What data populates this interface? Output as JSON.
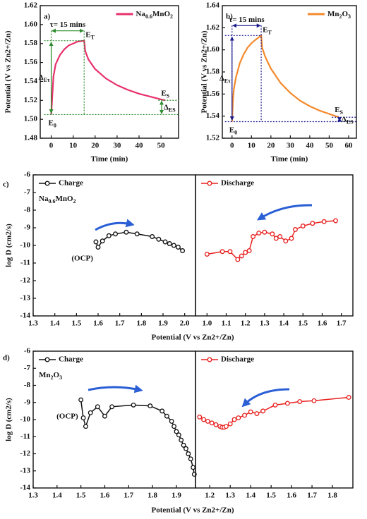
{
  "chart_data": [
    {
      "type": "line",
      "panel_label": "a)",
      "xlabel": "Time (min)",
      "ylabel": "Potential (V vs Zn2+/Zn)",
      "xlim": [
        -5,
        58
      ],
      "xticks": [
        0,
        10,
        20,
        30,
        40,
        50
      ],
      "ylim": [
        1.48,
        1.62
      ],
      "yticks": [
        1.48,
        {
          "value": 1.5,
          "label": "1.50"
        },
        1.52,
        1.54,
        1.56,
        1.58,
        {
          "value": 1.6,
          "label": "1.60"
        },
        1.62
      ],
      "legend": "upper right",
      "guide_color": "#2e8b2e",
      "annotations": [
        "τ= 15 mins",
        "ET",
        "ΔEτ",
        "ES",
        "ΔES",
        "E0"
      ],
      "series": [
        {
          "name": "Na0.6MnO2",
          "color": "#e8306b",
          "x": [
            0,
            1,
            2,
            4,
            6,
            8,
            10,
            12,
            15,
            15.5,
            17,
            20,
            25,
            30,
            35,
            40,
            45,
            50,
            52
          ],
          "values": [
            1.505,
            1.545,
            1.558,
            1.568,
            1.574,
            1.578,
            1.58,
            1.582,
            1.583,
            1.572,
            1.563,
            1.553,
            1.543,
            1.536,
            1.531,
            1.527,
            1.524,
            1.521,
            1.52
          ]
        }
      ]
    },
    {
      "type": "line",
      "panel_label": "b)",
      "xlabel": "Time (min)",
      "ylabel": "Potential (V vs Zn2+/Zn)",
      "xlim": [
        -5,
        64
      ],
      "xticks": [
        0,
        10,
        20,
        30,
        40,
        50,
        60
      ],
      "ylim": [
        1.52,
        1.64
      ],
      "yticks": [
        1.52,
        1.54,
        1.56,
        1.58,
        {
          "value": 1.6,
          "label": "1.60"
        },
        1.62,
        1.64
      ],
      "legend": "upper right",
      "guide_color": "#1a1a8c",
      "annotations": [
        "τ= 15 mins",
        "ET",
        "ΔEτ",
        "ES",
        "ΔES",
        "E0"
      ],
      "series": [
        {
          "name": "Mn2O3",
          "color": "#f4892c",
          "x": [
            0,
            0.5,
            1,
            2,
            4,
            6,
            8,
            10,
            12,
            15,
            15.5,
            17,
            20,
            25,
            30,
            35,
            40,
            45,
            50,
            55
          ],
          "values": [
            1.535,
            1.555,
            1.565,
            1.575,
            1.588,
            1.596,
            1.602,
            1.606,
            1.609,
            1.613,
            1.602,
            1.594,
            1.583,
            1.57,
            1.561,
            1.554,
            1.549,
            1.545,
            1.542,
            1.539
          ]
        }
      ]
    },
    {
      "type": "line",
      "markers": true,
      "panel_label": "c)",
      "xlabel": "Potential (V vs Zn2+/Zn)",
      "ylabel": "log D (cm2/s)",
      "xlim": [
        1.3,
        2.05
      ],
      "xticks": [
        1.3,
        1.4,
        1.5,
        1.6,
        1.7,
        1.8,
        1.9,
        {
          "value": 2,
          "label": "2.0"
        }
      ],
      "ylim": [
        -14,
        -6
      ],
      "yticks": [
        -14,
        -13,
        -12,
        -11,
        -10,
        -9,
        -8,
        -7,
        -6
      ],
      "legend": "upper left",
      "annotations": [
        "Na0.6MnO2",
        "(OCP)"
      ],
      "series": [
        {
          "name": "Charge",
          "color": "#111111",
          "x": [
            1.59,
            1.6,
            1.62,
            1.65,
            1.68,
            1.73,
            1.78,
            1.85,
            1.88,
            1.91,
            1.93,
            1.95,
            1.97,
            1.99
          ],
          "values": [
            -9.8,
            -10.1,
            -9.75,
            -9.45,
            -9.35,
            -9.25,
            -9.35,
            -9.5,
            -9.65,
            -9.8,
            -9.9,
            -10,
            -10.1,
            -10.3
          ]
        }
      ]
    },
    {
      "type": "line",
      "markers": true,
      "xlim": [
        0.94,
        1.76
      ],
      "xticks": [
        {
          "value": 1,
          "label": "1.0"
        },
        1.1,
        1.2,
        1.3,
        1.4,
        1.5,
        1.6,
        1.7
      ],
      "ylim": [
        -14,
        -6
      ],
      "legend": "upper left",
      "series": [
        {
          "name": "Discharge",
          "color": "#e8201e",
          "x": [
            1.0,
            1.08,
            1.12,
            1.16,
            1.18,
            1.2,
            1.22,
            1.24,
            1.27,
            1.3,
            1.34,
            1.36,
            1.38,
            1.41,
            1.44,
            1.46,
            1.5,
            1.55,
            1.61,
            1.67
          ],
          "values": [
            -10.5,
            -10.35,
            -10.35,
            -10.8,
            -10.6,
            -10.4,
            -10.3,
            -9.5,
            -9.3,
            -9.25,
            -9.35,
            -9.6,
            -9.5,
            -9.75,
            -9.6,
            -9.1,
            -8.9,
            -8.75,
            -8.65,
            -8.6
          ]
        }
      ]
    },
    {
      "type": "line",
      "markers": true,
      "panel_label": "d)",
      "xlabel": "Potential (V vs Zn2+/Zn)",
      "ylabel": "log D (cm2/s)",
      "xlim": [
        1.3,
        1.98
      ],
      "xticks": [
        1.3,
        1.4,
        1.5,
        1.6,
        1.7,
        1.8,
        1.9
      ],
      "ylim": [
        -14,
        -6
      ],
      "yticks": [
        -14,
        -13,
        -12,
        -11,
        -10,
        -9,
        -8,
        -7,
        -6
      ],
      "legend": "upper left",
      "annotations": [
        "Mn2O3",
        "(OCP)"
      ],
      "series": [
        {
          "name": "Charge",
          "color": "#111111",
          "x": [
            1.5,
            1.51,
            1.52,
            1.54,
            1.57,
            1.6,
            1.63,
            1.72,
            1.79,
            1.84,
            1.86,
            1.88,
            1.89,
            1.9,
            1.91,
            1.92,
            1.93,
            1.94,
            1.95,
            1.96,
            1.97,
            1.975
          ],
          "values": [
            -8.85,
            -9.9,
            -10.4,
            -9.6,
            -9.25,
            -9.8,
            -9.25,
            -9.15,
            -9.2,
            -9.5,
            -9.8,
            -10.1,
            -10.4,
            -10.7,
            -10.9,
            -11.2,
            -11.5,
            -11.7,
            -12,
            -12.3,
            -12.8,
            -13.2
          ]
        }
      ]
    },
    {
      "type": "line",
      "markers": true,
      "xlim": [
        1.13,
        1.9
      ],
      "xticks": [
        1.2,
        1.3,
        1.4,
        1.5,
        1.6,
        1.7,
        1.8
      ],
      "ylim": [
        -14,
        -6
      ],
      "legend": "upper left",
      "series": [
        {
          "name": "Discharge",
          "color": "#e8201e",
          "x": [
            1.15,
            1.17,
            1.19,
            1.21,
            1.23,
            1.25,
            1.26,
            1.27,
            1.28,
            1.3,
            1.32,
            1.34,
            1.37,
            1.4,
            1.43,
            1.46,
            1.52,
            1.58,
            1.64,
            1.71,
            1.88
          ],
          "values": [
            -9.85,
            -10,
            -10.1,
            -10.2,
            -10.3,
            -10.4,
            -10.45,
            -10.45,
            -10.4,
            -10.25,
            -10,
            -9.9,
            -9.75,
            -9.55,
            -9.65,
            -9.5,
            -9.15,
            -9.05,
            -8.95,
            -8.9,
            -8.7
          ]
        }
      ]
    }
  ]
}
